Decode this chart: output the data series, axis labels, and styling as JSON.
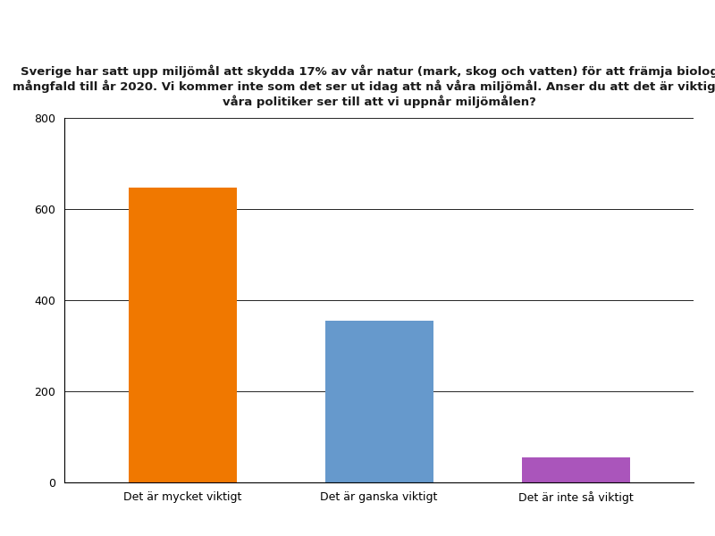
{
  "categories": [
    "Det är mycket viktigt",
    "Det är ganska viktigt",
    "Det är inte så viktigt"
  ],
  "values": [
    648,
    355,
    55
  ],
  "bar_colors": [
    "#F07800",
    "#6699CC",
    "#AA55BB"
  ],
  "title": "Sverige har satt upp miljömål att skydda 17% av vår natur (mark, skog och vatten) för att främja biologisk\nmångfald till år 2020. Vi kommer inte som det ser ut idag att nå våra miljömål. Anser du att det är viktigt att\nvåra politiker ser till att vi uppnår miljömålen?",
  "ylim": [
    0,
    800
  ],
  "yticks": [
    0,
    200,
    400,
    600,
    800
  ],
  "title_fontsize": 9.5,
  "tick_fontsize": 9,
  "background_color": "#FFFFFF",
  "bar_width": 0.55,
  "figsize": [
    8.0,
    6.0
  ],
  "dpi": 100
}
